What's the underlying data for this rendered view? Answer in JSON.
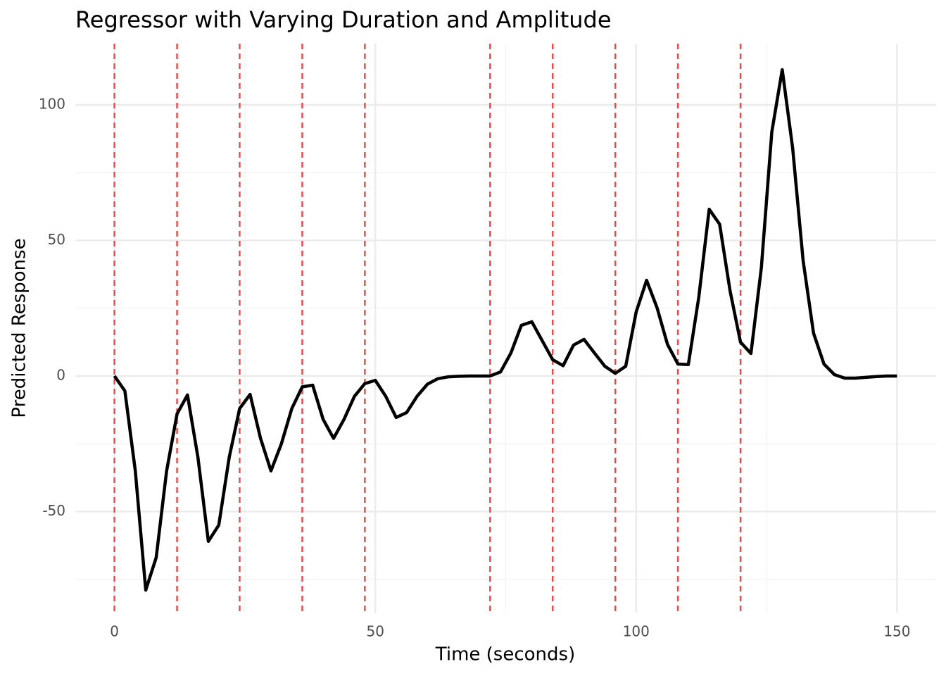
{
  "chart_data": {
    "type": "line",
    "title": "Regressor with Varying Duration and Amplitude",
    "x_label": "Time (seconds)",
    "y_label": "Predicted Response",
    "x": [
      0,
      2,
      4,
      6,
      8,
      10,
      12,
      14,
      16,
      18,
      20,
      22,
      24,
      26,
      28,
      30,
      32,
      34,
      36,
      38,
      40,
      42,
      44,
      46,
      48,
      50,
      52,
      54,
      56,
      58,
      60,
      62,
      64,
      66,
      68,
      70,
      72,
      74,
      76,
      78,
      80,
      82,
      84,
      86,
      88,
      90,
      92,
      94,
      96,
      98,
      100,
      102,
      104,
      106,
      108,
      110,
      112,
      114,
      116,
      118,
      120,
      122,
      124,
      126,
      128,
      130,
      132,
      134,
      136,
      138,
      140,
      142,
      144,
      146,
      148,
      150
    ],
    "series": [
      {
        "color": "#000000",
        "values": [
          0,
          -5.5,
          -35,
          -79,
          -67,
          -35,
          -14,
          -7,
          -30,
          -61,
          -55,
          -30,
          -12,
          -6.8,
          -23,
          -35,
          -25,
          -12,
          -4,
          -3.4,
          -16,
          -23,
          -16,
          -7.5,
          -2.8,
          -1.6,
          -7.5,
          -15.3,
          -13.5,
          -7.5,
          -3,
          -1,
          -0.3,
          -0.1,
          0,
          0,
          0,
          1.5,
          8.5,
          18.7,
          20,
          13,
          6,
          3.8,
          11.4,
          13.5,
          8.5,
          3.6,
          1,
          3.6,
          23.6,
          35.3,
          25.2,
          11.7,
          4.4,
          4.2,
          29,
          61.5,
          56,
          31.4,
          12.5,
          8.3,
          40,
          90,
          113,
          84,
          42.6,
          15.8,
          4.4,
          0.5,
          -0.8,
          -0.8,
          -0.5,
          -0.2,
          0,
          0
        ]
      }
    ],
    "event_lines": {
      "color": "#f04545",
      "values": [
        0,
        12,
        24,
        36,
        48,
        72,
        84,
        96,
        108,
        120
      ]
    },
    "xlim": [
      -7.5,
      157.5
    ],
    "ylim": [
      -87.3,
      122.6
    ],
    "xticks": [
      0,
      50,
      100,
      150
    ],
    "yticks": [
      -50,
      0,
      50,
      100
    ],
    "xminor": [
      25,
      75,
      125
    ],
    "yminor": [
      -75,
      -25,
      25,
      75
    ],
    "grid": true
  }
}
